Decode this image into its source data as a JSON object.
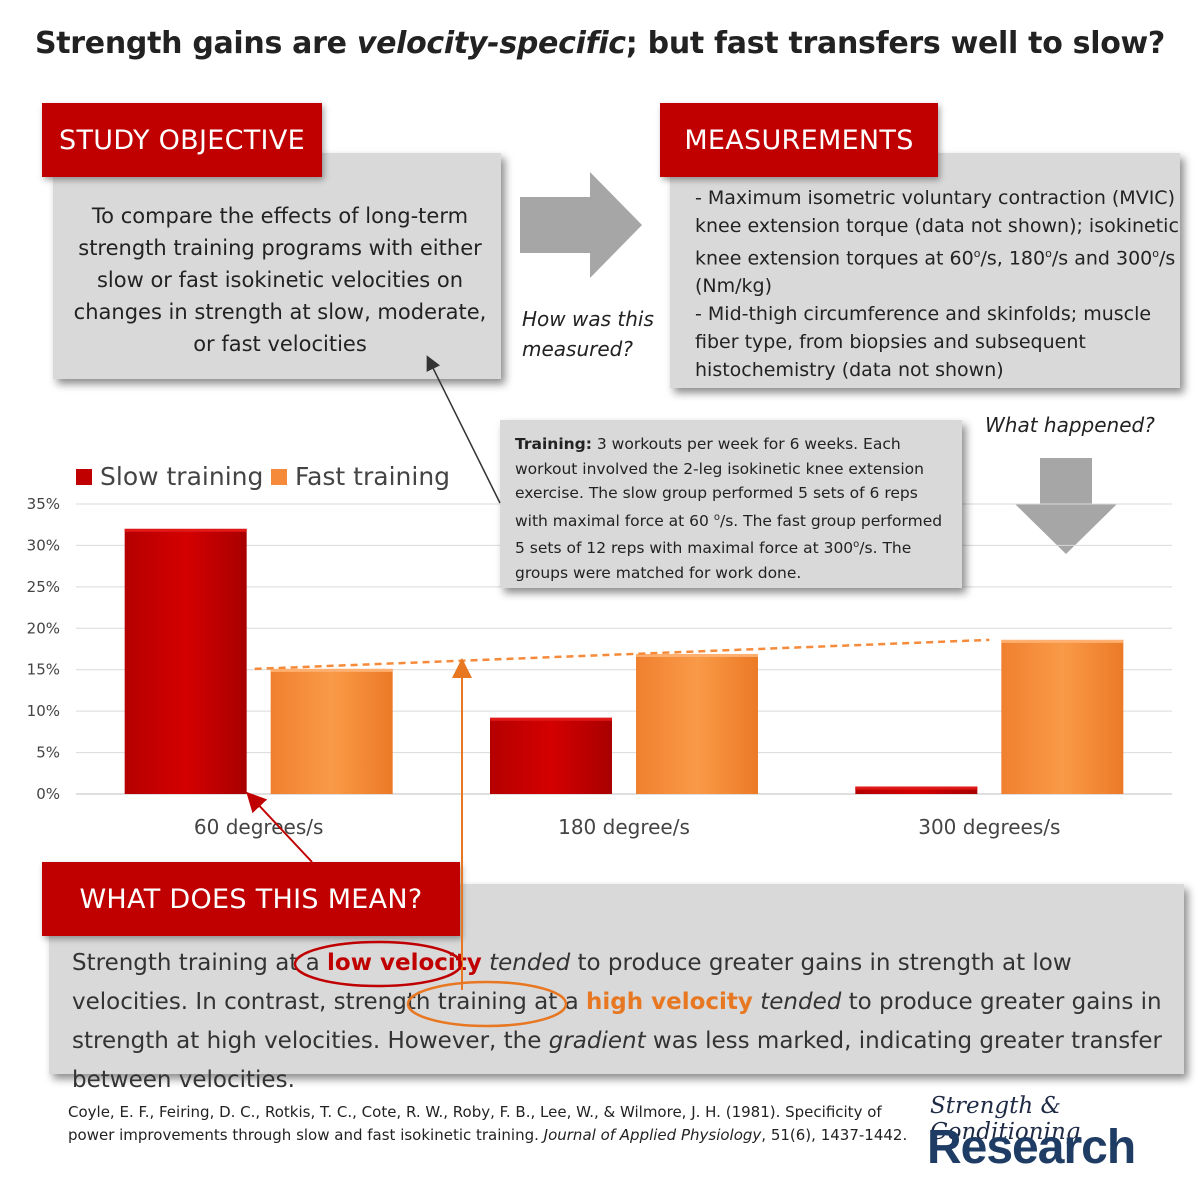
{
  "header": {
    "title_part1": "Strength gains are ",
    "title_emph": "velocity-specific",
    "title_part2": "; but fast transfers well to slow?"
  },
  "objective": {
    "banner": "STUDY OBJECTIVE",
    "text": "To compare the effects of long-term strength training programs with either slow or fast isokinetic velocities on changes in strength at slow, moderate, or fast velocities"
  },
  "measurements": {
    "banner": "MEASUREMENTS",
    "line1": "- Maximum isometric voluntary contraction (MVIC) knee extension torque (data not shown); isokinetic knee extension torques at 60",
    "line1b": "/s, 180",
    "line1c": "/s and 300",
    "line1d": "/s (Nm/kg)",
    "deg_sup": "o",
    "line2": "- Mid-thigh circumference and skinfolds; muscle fiber type, from biopsies and subsequent histochemistry (data not shown)"
  },
  "questions": {
    "how": "How was this measured?",
    "what": "What happened?"
  },
  "training": {
    "label": "Training:",
    "text_a": " 3 workouts per week for 6 weeks. Each workout involved the 2-leg isokinetic knee extension exercise. The slow group performed 5 sets of 6 reps with maximal force at 60 ",
    "text_b": "/s. The fast group performed 5 sets of 12 reps with maximal force at 300",
    "text_c": "/s. The groups were matched for work done.",
    "deg_sup": "o"
  },
  "meaning": {
    "banner": "WHAT DOES THIS MEAN?",
    "s1": "Strength training at a ",
    "low": "low velocity",
    "tended": "tended",
    "s2": " to produce greater gains in strength at low velocities. In contrast, strength training at a ",
    "high": "high velocity",
    "s3": " to produce greater gains in strength at high velocities. However, the ",
    "gradient": "gradient",
    "s4": " was less marked, indicating greater transfer between velocities."
  },
  "reference": {
    "text_a": "Coyle, E. F., Feiring, D. C., Rotkis, T. C., Cote, R. W., Roby, F. B., Lee, W., & Wilmore, J. H. (1981). Specificity of power improvements through slow and fast isokinetic training. ",
    "journal": "Journal of Applied Physiology",
    "text_b": ", 51(6), 1437-1442."
  },
  "logo": {
    "script": "Strength & Conditioning",
    "word": "Research"
  },
  "colors": {
    "slow": "#c00000",
    "fast": "#f58a3a",
    "banner": "#c00000"
  },
  "chart_data": {
    "type": "bar",
    "categories": [
      "60 degrees/s",
      "180 degree/s",
      "300 degrees/s"
    ],
    "series": [
      {
        "name": "Slow training",
        "values": [
          32,
          9.2,
          0.9
        ]
      },
      {
        "name": "Fast training",
        "values": [
          15.1,
          16.9,
          18.6
        ]
      }
    ],
    "ylim": [
      0,
      35
    ],
    "yticks": [
      "0%",
      "5%",
      "10%",
      "15%",
      "20%",
      "25%",
      "30%",
      "35%"
    ],
    "ytick_values": [
      0,
      5,
      10,
      15,
      20,
      25,
      30,
      35
    ],
    "trend_line": {
      "from": 15.1,
      "to": 18.6
    },
    "legend_position": "top-left",
    "xlabel": "",
    "ylabel": ""
  }
}
